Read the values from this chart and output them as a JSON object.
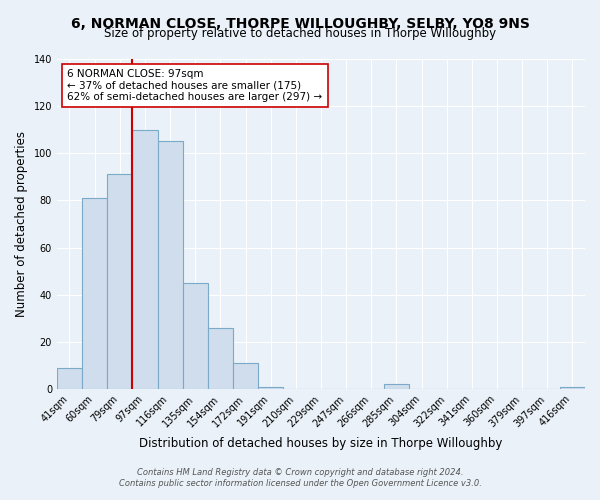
{
  "title": "6, NORMAN CLOSE, THORPE WILLOUGHBY, SELBY, YO8 9NS",
  "subtitle": "Size of property relative to detached houses in Thorpe Willoughby",
  "xlabel": "Distribution of detached houses by size in Thorpe Willoughby",
  "ylabel": "Number of detached properties",
  "bin_labels": [
    "41sqm",
    "60sqm",
    "79sqm",
    "97sqm",
    "116sqm",
    "135sqm",
    "154sqm",
    "172sqm",
    "191sqm",
    "210sqm",
    "229sqm",
    "247sqm",
    "266sqm",
    "285sqm",
    "304sqm",
    "322sqm",
    "341sqm",
    "360sqm",
    "379sqm",
    "397sqm",
    "416sqm"
  ],
  "bar_values": [
    9,
    81,
    91,
    110,
    105,
    45,
    26,
    11,
    1,
    0,
    0,
    0,
    0,
    2,
    0,
    0,
    0,
    0,
    0,
    0,
    1
  ],
  "bar_color": "#cfdded",
  "bar_edgecolor": "#7aaac8",
  "vline_x": 3,
  "vline_color": "#cc0000",
  "annotation_line1": "6 NORMAN CLOSE: 97sqm",
  "annotation_line2": "← 37% of detached houses are smaller (175)",
  "annotation_line3": "62% of semi-detached houses are larger (297) →",
  "annotation_box_edgecolor": "#cc0000",
  "annotation_box_facecolor": "#ffffff",
  "ylim": [
    0,
    140
  ],
  "yticks": [
    0,
    20,
    40,
    60,
    80,
    100,
    120,
    140
  ],
  "footer_line1": "Contains HM Land Registry data © Crown copyright and database right 2024.",
  "footer_line2": "Contains public sector information licensed under the Open Government Licence v3.0.",
  "bg_color": "#eaf1f8",
  "plot_bg_color": "#eaf1f8",
  "title_fontsize": 10,
  "subtitle_fontsize": 8.5,
  "axis_label_fontsize": 8.5,
  "tick_fontsize": 7,
  "annotation_fontsize": 7.5,
  "footer_fontsize": 6
}
